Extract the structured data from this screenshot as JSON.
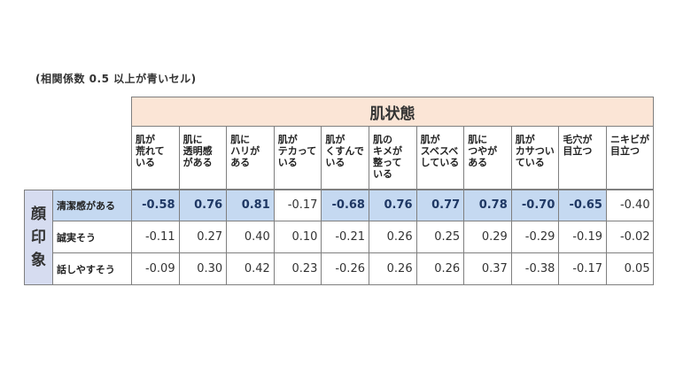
{
  "note": "(相関係数 0.5 以上が青いセル)",
  "chart_data": {
    "type": "table",
    "column_group": "肌状態",
    "row_group": "顔印象",
    "row_group_chars": [
      "顔",
      "印",
      "象"
    ],
    "columns": [
      "肌が\n荒れて\nいる",
      "肌に\n透明感\nがある",
      "肌に\nハリが\nある",
      "肌が\nテカって\nいる",
      "肌が\nくすんで\nいる",
      "肌の\nキメが\n整って\nいる",
      "肌が\nスベスベ\nしている",
      "肌に\nつやが\nある",
      "肌が\nカサつい\nている",
      "毛穴が\n目立つ",
      "ニキビが\n目立つ"
    ],
    "rows": [
      {
        "label": "清潔感がある",
        "values": [
          "-0.58",
          "0.76",
          "0.81",
          "-0.17",
          "-0.68",
          "0.76",
          "0.77",
          "0.78",
          "-0.70",
          "-0.65",
          "-0.40"
        ],
        "highlight": [
          true,
          true,
          true,
          false,
          true,
          true,
          true,
          true,
          true,
          true,
          false
        ]
      },
      {
        "label": "誠実そう",
        "values": [
          "-0.11",
          "0.27",
          "0.40",
          "0.10",
          "-0.21",
          "0.26",
          "0.25",
          "0.29",
          "-0.29",
          "-0.19",
          "-0.02"
        ],
        "highlight": [
          false,
          false,
          false,
          false,
          false,
          false,
          false,
          false,
          false,
          false,
          false
        ]
      },
      {
        "label": "話しやすそう",
        "values": [
          "-0.09",
          "0.30",
          "0.42",
          "0.23",
          "-0.26",
          "0.26",
          "0.26",
          "0.37",
          "-0.38",
          "-0.17",
          "0.05"
        ],
        "highlight": [
          false,
          false,
          false,
          false,
          false,
          false,
          false,
          false,
          false,
          false,
          false
        ]
      }
    ],
    "highlight_color": "#c5d9f1",
    "header_color": "#fbe5d6",
    "side_color": "#d6dcf0"
  }
}
